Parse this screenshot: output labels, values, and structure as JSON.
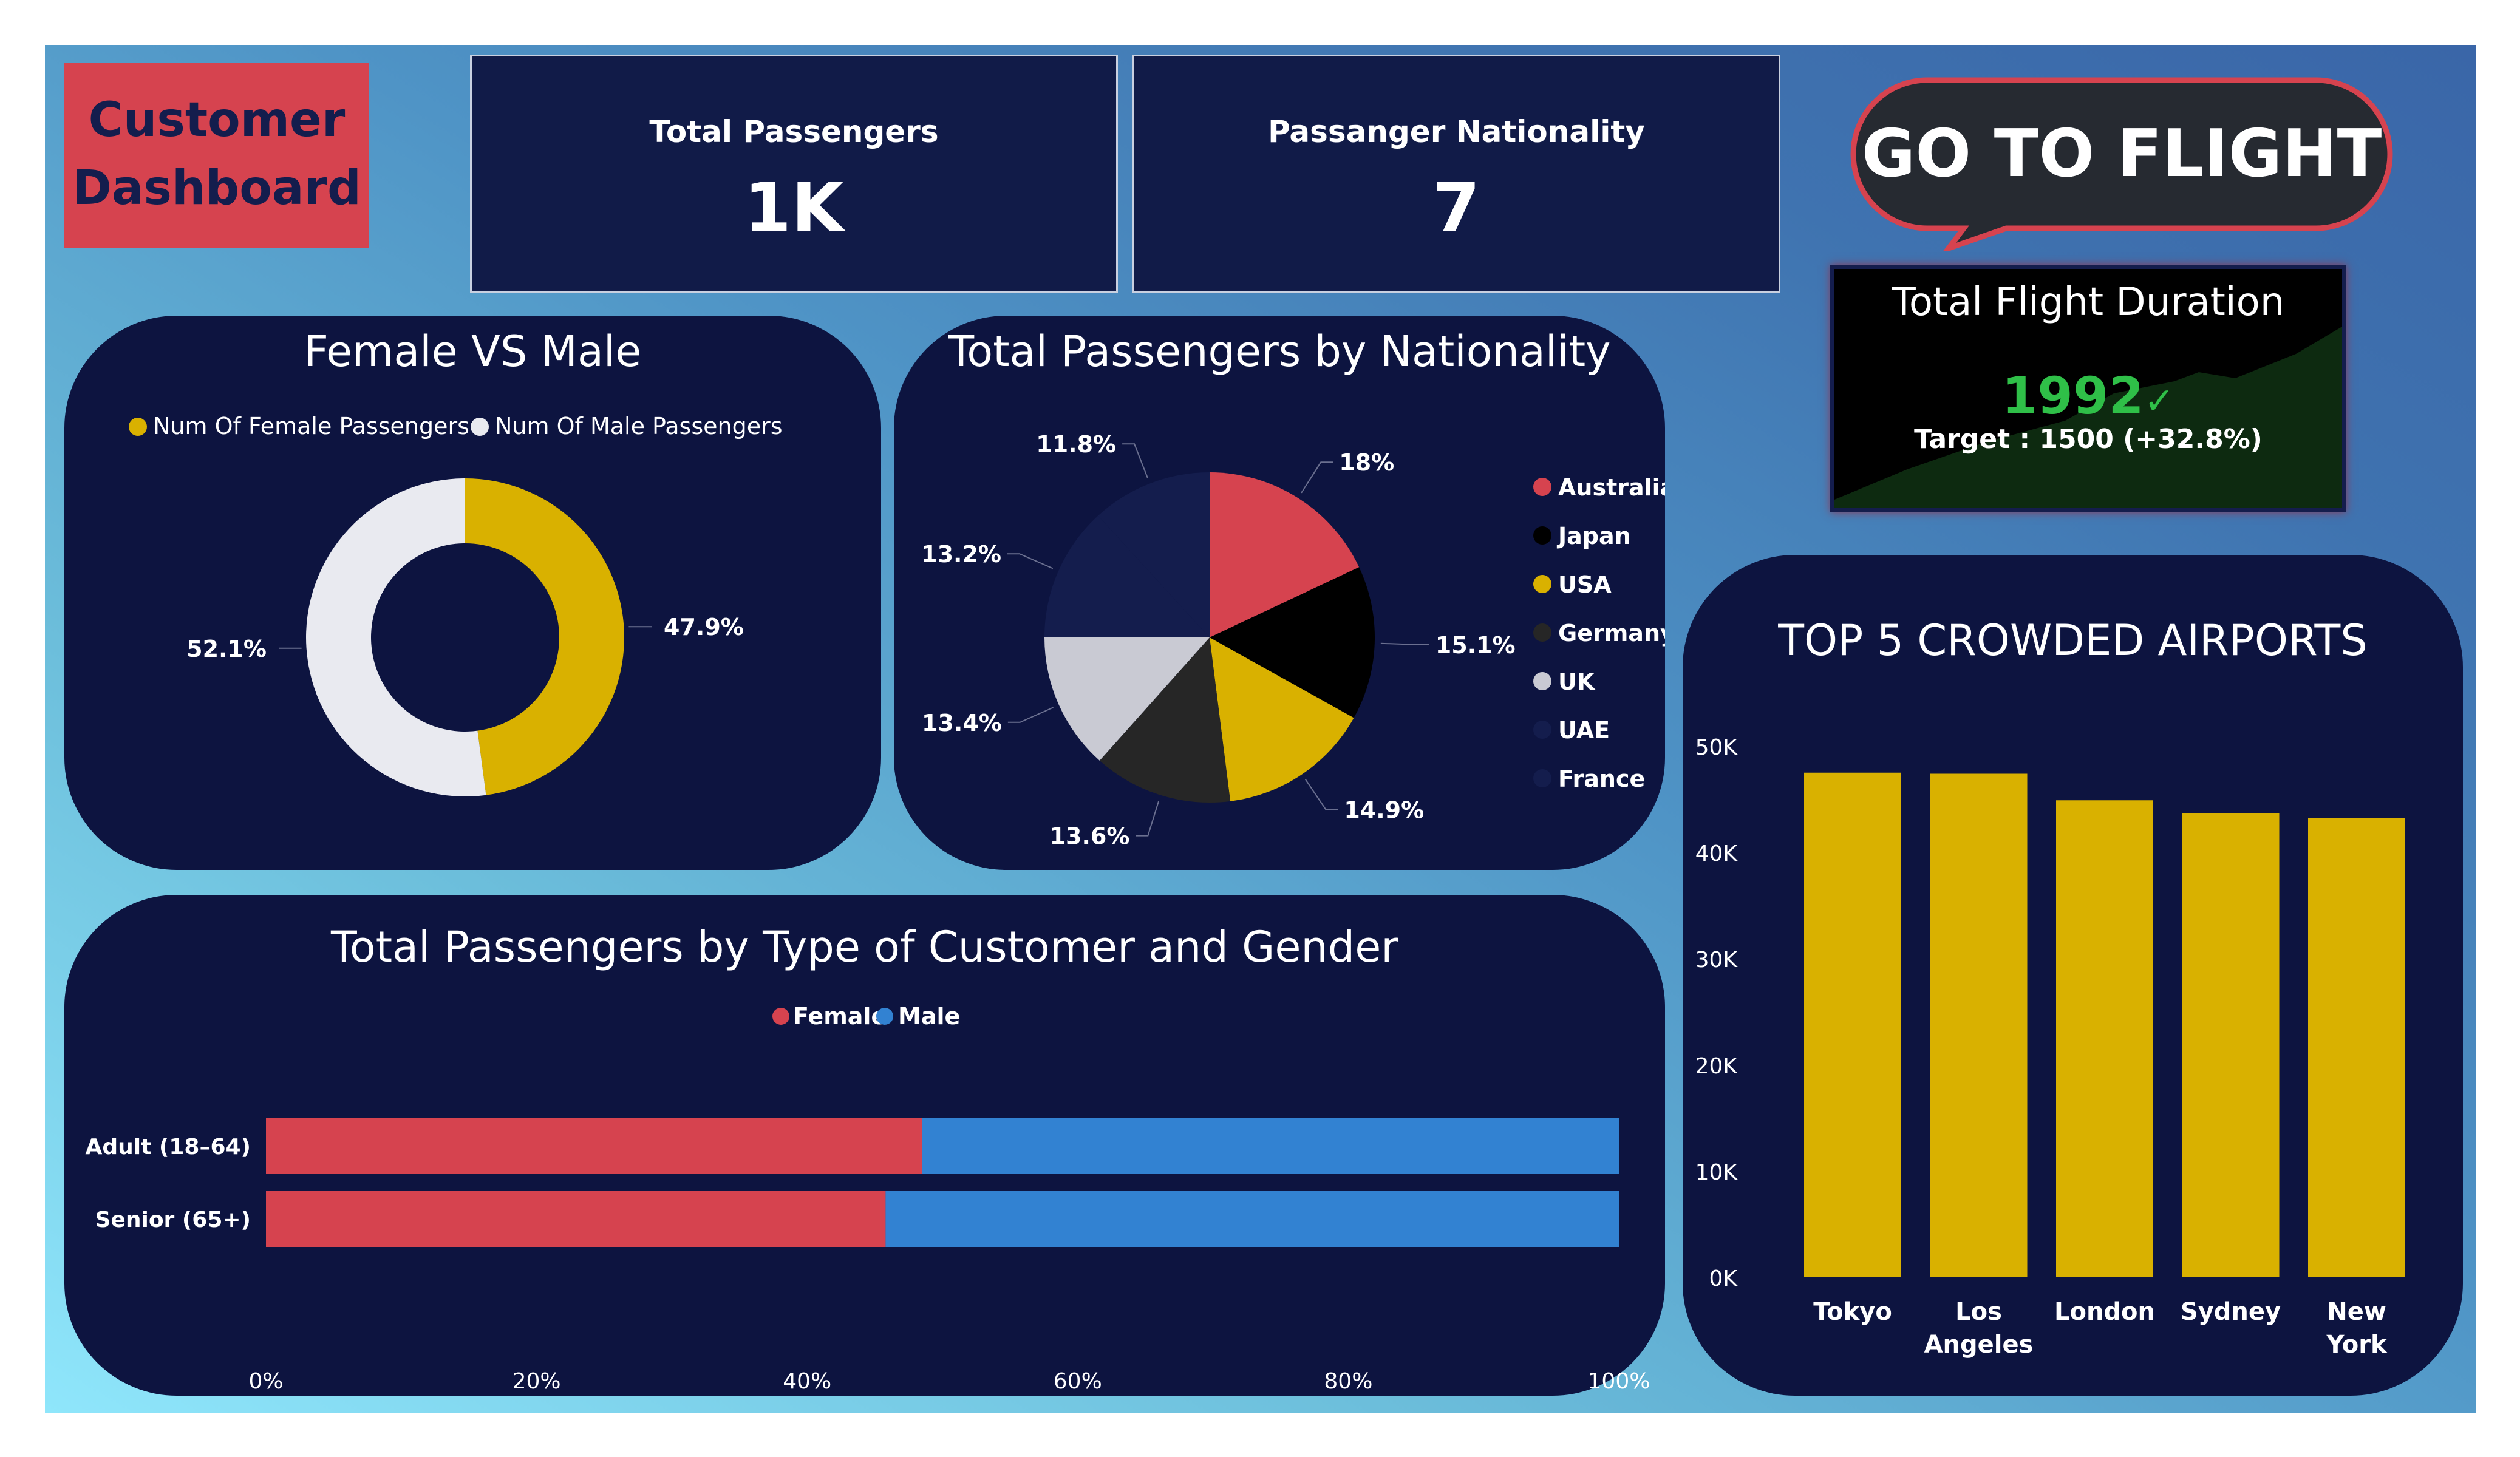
{
  "header": {
    "title_line1": "Customer",
    "title_line2": "Dashboard",
    "go_button": "GO TO FLIGHT"
  },
  "kpis": {
    "total_passengers": {
      "label": "Total Passengers",
      "value": "1K"
    },
    "nationality": {
      "label": "Passanger Nationality",
      "value": "7"
    }
  },
  "flight_duration": {
    "title": "Total Flight Duration",
    "value": "1992",
    "target": "Target : 1500 (+32.8%)",
    "check": "✓"
  },
  "colors": {
    "red": "#d6434f",
    "black": "#000000",
    "gold": "#d9b100",
    "darkgray": "#262626",
    "lightgray": "#c9cad3",
    "navy": "#141d4d",
    "blue": "#3282d2",
    "panel": "#0d1440",
    "white_donut": "#e9eaf0",
    "green": "#2fbf48"
  },
  "chart_data": [
    {
      "type": "pie",
      "title": "Female VS Male",
      "donut": true,
      "legend": [
        "Num Of Female Passengers",
        "Num Of Male Passengers"
      ],
      "values": [
        47.9,
        52.1
      ],
      "labels": [
        "47.9%",
        "52.1%"
      ]
    },
    {
      "type": "pie",
      "title": "Total Passengers by Nationality",
      "categories": [
        "Australia",
        "Japan",
        "USA",
        "Germany",
        "UK",
        "UAE",
        "France"
      ],
      "values": [
        18,
        15.1,
        14.9,
        13.6,
        13.4,
        13.2,
        11.8
      ],
      "labels": [
        "18%",
        "15.1%",
        "14.9%",
        "13.6%",
        "13.4%",
        "13.2%",
        "11.8%"
      ]
    },
    {
      "type": "bar",
      "title": "Total Passengers by Type of Customer and Gender",
      "orientation": "horizontal-stacked-100",
      "categories": [
        "Adult (18–64)",
        "Senior (65+)"
      ],
      "series": [
        {
          "name": "Female",
          "values": [
            48.5,
            45.8
          ]
        },
        {
          "name": "Male",
          "values": [
            51.5,
            54.2
          ]
        }
      ],
      "xticks": [
        "0%",
        "20%",
        "40%",
        "60%",
        "80%",
        "100%"
      ]
    },
    {
      "type": "bar",
      "title": "TOP 5 CROWDED AIRPORTS",
      "categories": [
        "Tokyo",
        "Los Angeles",
        "London",
        "Sydney",
        "New York"
      ],
      "category_lines": [
        [
          "Tokyo"
        ],
        [
          "Los",
          "Angeles"
        ],
        [
          "London"
        ],
        [
          "Sydney"
        ],
        [
          "New",
          "York"
        ]
      ],
      "values": [
        47500,
        47400,
        44900,
        43700,
        43200
      ],
      "ylim": [
        0,
        50000
      ],
      "yticks": [
        "0K",
        "10K",
        "20K",
        "30K",
        "40K",
        "50K"
      ]
    }
  ]
}
